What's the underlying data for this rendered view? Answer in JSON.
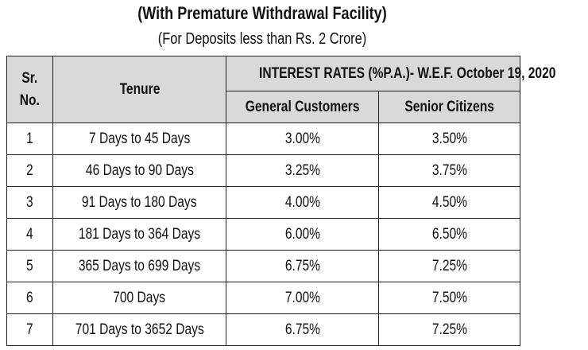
{
  "title": "(With Premature Withdrawal Facility)",
  "subtitle": "(For Deposits less than Rs. 2 Crore)",
  "table": {
    "header": {
      "sr_line1": "Sr.",
      "sr_line2": "No.",
      "tenure": "Tenure",
      "rates_group": "INTEREST RATES (%P.A.)- W.E.F. October 19, 2020",
      "general": "General Customers",
      "senior": "Senior Citizens"
    },
    "rows": [
      {
        "sr": "1",
        "tenure": "7 Days to 45 Days",
        "general": "3.00%",
        "senior": "3.50%"
      },
      {
        "sr": "2",
        "tenure": "46 Days to 90 Days",
        "general": "3.25%",
        "senior": "3.75%"
      },
      {
        "sr": "3",
        "tenure": "91 Days to 180 Days",
        "general": "4.00%",
        "senior": "4.50%"
      },
      {
        "sr": "4",
        "tenure": "181 Days to 364 Days",
        "general": "6.00%",
        "senior": "6.50%"
      },
      {
        "sr": "5",
        "tenure": "365 Days to 699 Days",
        "general": "6.75%",
        "senior": "7.25%"
      },
      {
        "sr": "6",
        "tenure": "700 Days",
        "general": "7.00%",
        "senior": "7.50%"
      },
      {
        "sr": "7",
        "tenure": "701 Days to 3652 Days",
        "general": "6.75%",
        "senior": "7.25%"
      }
    ]
  }
}
